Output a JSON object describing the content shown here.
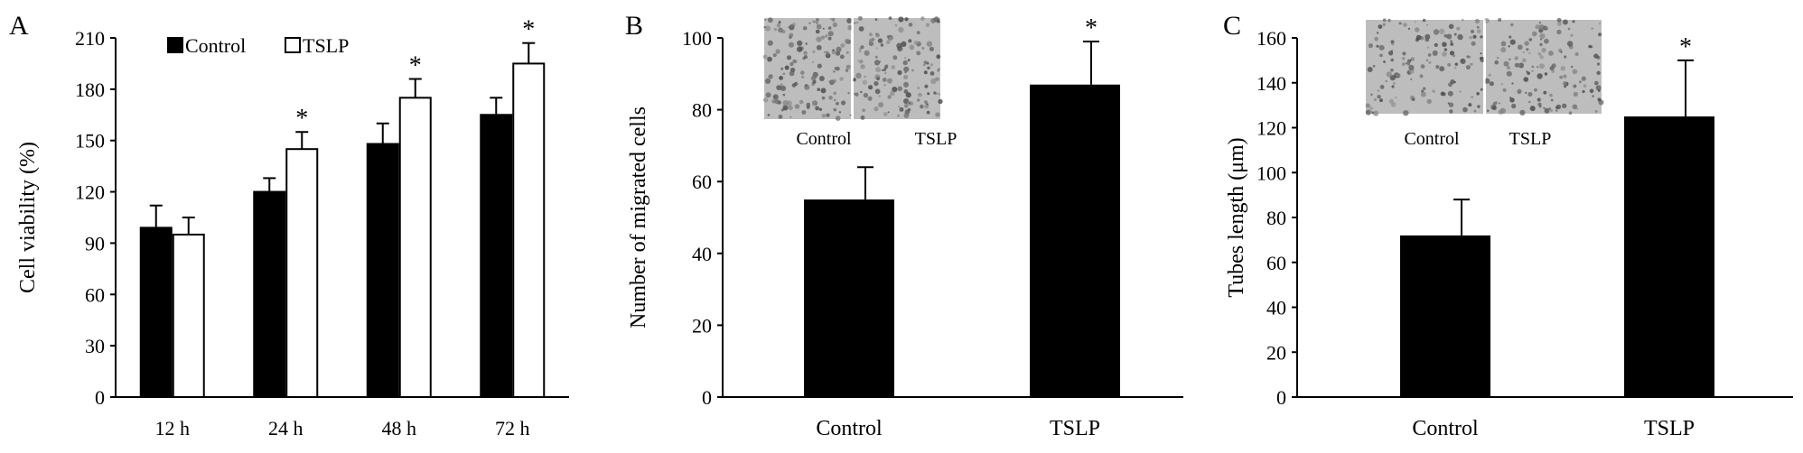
{
  "chart_data": [
    {
      "panel": "A",
      "type": "bar",
      "ylabel": "Cell viability (%)",
      "xlabel": "",
      "ylim": [
        0,
        210
      ],
      "yticks": [
        0,
        30,
        60,
        90,
        120,
        150,
        180,
        210
      ],
      "categories": [
        "12 h",
        "24 h",
        "48 h",
        "72 h"
      ],
      "series": [
        {
          "name": "Control",
          "values": [
            99,
            120,
            148,
            165
          ],
          "errors": [
            13,
            8,
            12,
            10
          ],
          "color": "#000000"
        },
        {
          "name": "TSLP",
          "values": [
            95,
            145,
            175,
            195
          ],
          "errors": [
            10,
            10,
            11,
            12
          ],
          "color": "#ffffff"
        }
      ],
      "significance": [
        "",
        "*",
        "*",
        "*"
      ],
      "legend": "top-left"
    },
    {
      "panel": "B",
      "type": "bar",
      "ylabel": "Number of migrated cells",
      "xlabel": "",
      "ylim": [
        0,
        100
      ],
      "yticks": [
        0,
        20,
        40,
        60,
        80,
        100
      ],
      "categories": [
        "Control",
        "TSLP"
      ],
      "values": [
        55,
        87
      ],
      "errors": [
        9,
        12
      ],
      "significance": [
        "",
        "*"
      ],
      "inset_labels": [
        "Control",
        "TSLP"
      ],
      "color": "#000000"
    },
    {
      "panel": "C",
      "type": "bar",
      "ylabel": "Tubes length (μm)",
      "xlabel": "",
      "ylim": [
        0,
        160
      ],
      "yticks": [
        0,
        20,
        40,
        60,
        80,
        100,
        120,
        140,
        160
      ],
      "categories": [
        "Control",
        "TSLP"
      ],
      "values": [
        72,
        125
      ],
      "errors": [
        16,
        25
      ],
      "significance": [
        "",
        "*"
      ],
      "inset_labels": [
        "Control",
        "TSLP"
      ],
      "color": "#000000"
    }
  ]
}
